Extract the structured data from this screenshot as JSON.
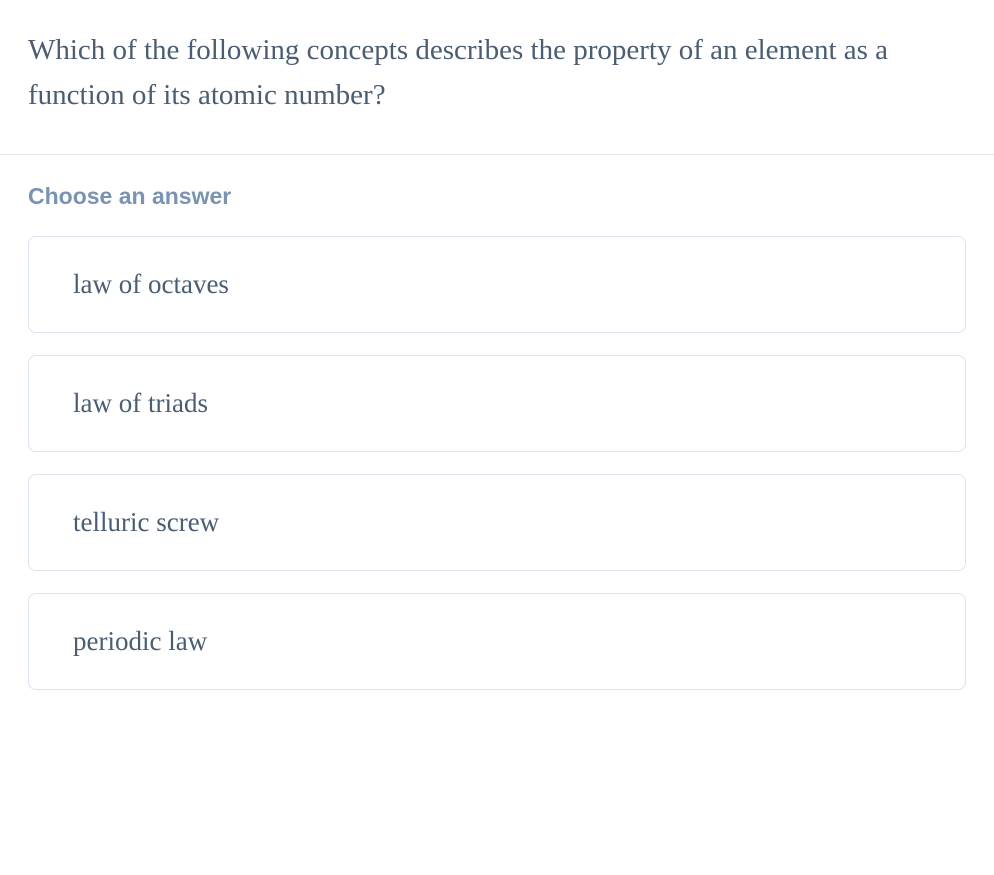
{
  "question": {
    "text": "Which of the following concepts describes the property of an element as a function of its atomic number?",
    "text_color": "#4a5d73",
    "fontsize": 29
  },
  "choose_label": {
    "text": "Choose an answer",
    "color": "#7a93b3",
    "fontsize": 23
  },
  "options": [
    {
      "label": "law of octaves"
    },
    {
      "label": "law of triads"
    },
    {
      "label": "telluric screw"
    },
    {
      "label": "periodic law"
    }
  ],
  "styling": {
    "background_color": "#ffffff",
    "divider_color": "#e2e8ef",
    "option_border_color": "#dbe3ec",
    "option_border_radius": 8,
    "option_fontsize": 27,
    "option_text_color": "#4a5d73",
    "option_gap": 22,
    "option_padding_vertical": 32,
    "option_padding_horizontal": 44
  }
}
